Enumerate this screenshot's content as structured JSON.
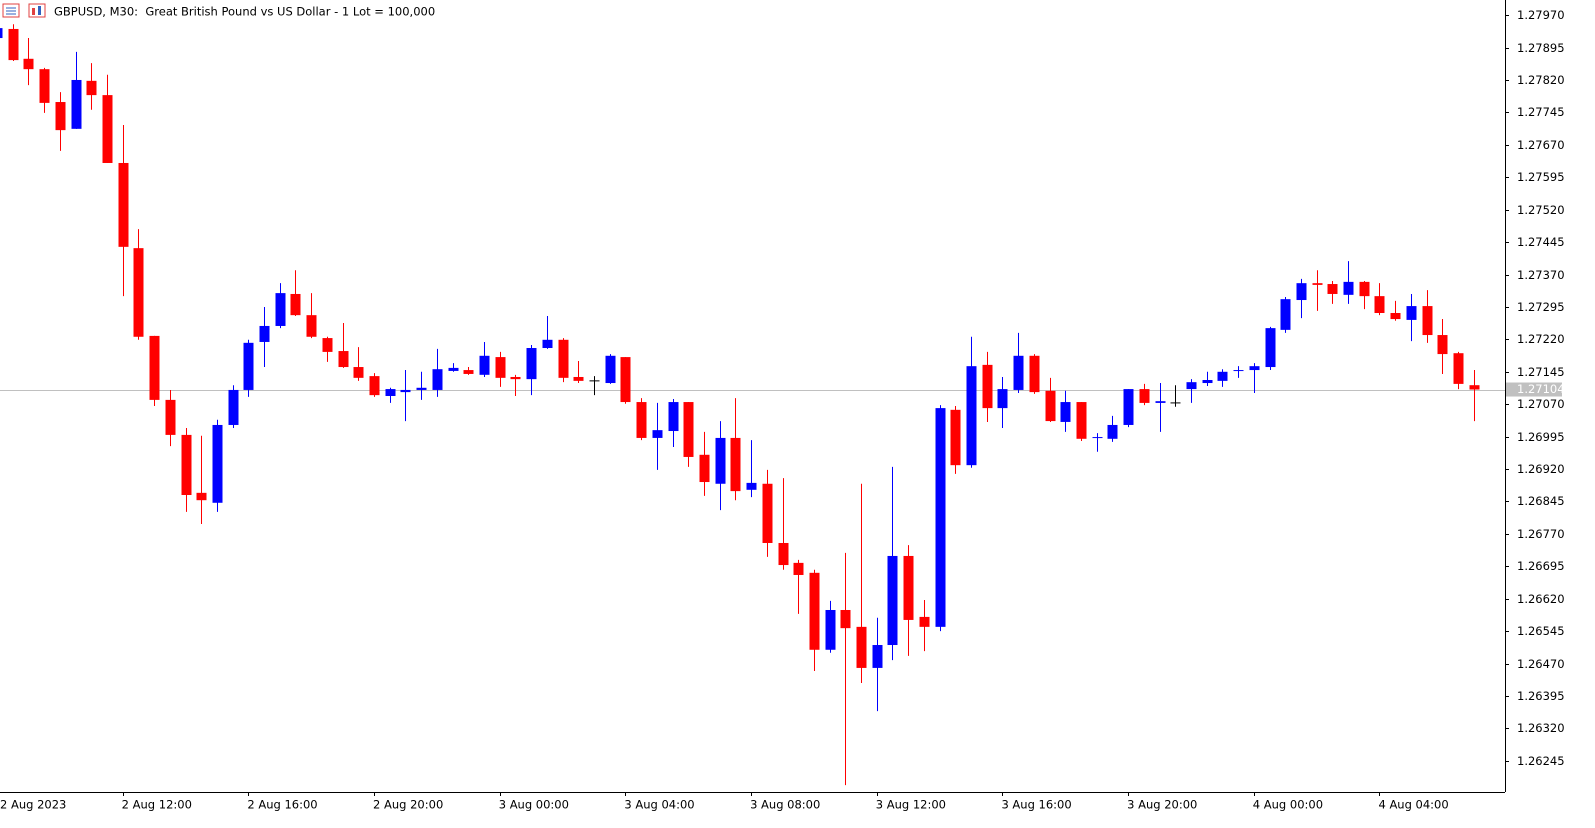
{
  "chart_data": {
    "type": "candlestick",
    "title": "GBPUSD, M30:  Great British Pound vs US Dollar - 1 Lot = 100,000",
    "categories": [
      "2 Aug 2023",
      null,
      null,
      null,
      null,
      null,
      null,
      null,
      "2 Aug 12:00",
      null,
      null,
      null,
      null,
      null,
      null,
      null,
      "2 Aug 16:00",
      null,
      null,
      null,
      null,
      null,
      null,
      null,
      "2 Aug 20:00",
      null,
      null,
      null,
      null,
      null,
      null,
      null,
      "3 Aug 00:00",
      null,
      null,
      null,
      null,
      null,
      null,
      null,
      "3 Aug 04:00",
      null,
      null,
      null,
      null,
      null,
      null,
      null,
      "3 Aug 08:00",
      null,
      null,
      null,
      null,
      null,
      null,
      null,
      "3 Aug 12:00",
      null,
      null,
      null,
      null,
      null,
      null,
      null,
      "3 Aug 16:00",
      null,
      null,
      null,
      null,
      null,
      null,
      null,
      "3 Aug 20:00",
      null,
      null,
      null,
      null,
      null,
      null,
      null,
      "4 Aug 00:00",
      null,
      null,
      null,
      null,
      null,
      null,
      null,
      "4 Aug 04:00",
      null,
      null,
      null,
      null,
      null,
      null
    ],
    "open": [
      1.27917,
      1.27938,
      1.27869,
      1.27845,
      1.27769,
      1.27707,
      1.27818,
      1.27785,
      1.27628,
      1.27431,
      1.27228,
      1.2708,
      1.26999,
      1.26865,
      1.26842,
      1.27022,
      1.27103,
      1.27214,
      1.27251,
      1.27325,
      1.27276,
      1.27223,
      1.27193,
      1.27156,
      1.27135,
      1.27089,
      1.27098,
      1.27103,
      1.27103,
      1.27147,
      1.27149,
      1.27138,
      1.27179,
      1.27133,
      1.27128,
      1.272,
      1.27219,
      1.27133,
      1.27124,
      1.27119,
      1.27179,
      1.27075,
      1.26992,
      1.27008,
      1.27075,
      1.26953,
      1.26886,
      1.26992,
      1.26872,
      1.26886,
      1.26749,
      1.26703,
      1.2668,
      1.26502,
      1.26594,
      1.26555,
      1.2646,
      1.26513,
      1.26719,
      1.26578,
      1.26555,
      1.27057,
      1.26929,
      1.27161,
      1.27061,
      1.27103,
      1.27182,
      1.27101,
      1.27029,
      1.27075,
      1.26992,
      1.2699,
      1.27022,
      1.27105,
      1.27073,
      1.27073,
      1.27105,
      1.27119,
      1.27124,
      1.27147,
      1.27149,
      1.27156,
      1.27242,
      1.27311,
      1.2735,
      1.27348,
      1.27323,
      1.27353,
      1.2732,
      1.27281,
      1.27265,
      1.27297,
      1.2723,
      1.27188,
      1.27114
    ],
    "high": [
      1.27949,
      1.27949,
      1.27917,
      1.27848,
      1.27792,
      1.27885,
      1.27859,
      1.27832,
      1.27716,
      1.27475,
      1.27228,
      1.27103,
      1.27015,
      1.26997,
      1.27034,
      1.27114,
      1.27219,
      1.27295,
      1.2735,
      1.2738,
      1.27327,
      1.27226,
      1.27258,
      1.27202,
      1.27142,
      1.27108,
      1.27149,
      1.27145,
      1.27198,
      1.27165,
      1.27156,
      1.27214,
      1.27191,
      1.27138,
      1.27207,
      1.27274,
      1.27223,
      1.2717,
      1.27135,
      1.27186,
      1.27179,
      1.27084,
      1.27073,
      1.27082,
      1.27075,
      1.27006,
      1.27031,
      1.27084,
      1.26987,
      1.26918,
      1.26899,
      1.2671,
      1.26687,
      1.26615,
      1.26726,
      1.26886,
      1.26576,
      1.26925,
      1.26744,
      1.26617,
      1.27068,
      1.27066,
      1.27226,
      1.27191,
      1.27133,
      1.27235,
      1.27186,
      1.27131,
      1.27101,
      1.27075,
      1.27003,
      1.27043,
      1.27105,
      1.27117,
      1.27119,
      1.27114,
      1.27128,
      1.27145,
      1.27151,
      1.27158,
      1.27165,
      1.27249,
      1.27318,
      1.2736,
      1.2738,
      1.27355,
      1.27401,
      1.27355,
      1.2735,
      1.27309,
      1.27325,
      1.27334,
      1.27267,
      1.27191,
      1.27149
    ],
    "low": [
      1.27912,
      1.27864,
      1.27808,
      1.27744,
      1.27656,
      1.27707,
      1.27751,
      1.27628,
      1.2732,
      1.27219,
      1.27066,
      1.26973,
      1.26821,
      1.26793,
      1.26821,
      1.27015,
      1.27087,
      1.27156,
      1.27246,
      1.27274,
      1.27223,
      1.27168,
      1.27154,
      1.27124,
      1.27087,
      1.27073,
      1.27031,
      1.2708,
      1.27087,
      1.27145,
      1.27138,
      1.27133,
      1.2711,
      1.27089,
      1.27091,
      1.27198,
      1.27121,
      1.27119,
      1.27091,
      1.27117,
      1.27071,
      1.26987,
      1.26918,
      1.26971,
      1.26925,
      1.26858,
      1.26825,
      1.26848,
      1.26855,
      1.26717,
      1.26687,
      1.26585,
      1.26453,
      1.26495,
      1.26189,
      1.26425,
      1.2636,
      1.26478,
      1.26488,
      1.26499,
      1.26545,
      1.26909,
      1.26923,
      1.27029,
      1.27015,
      1.27096,
      1.27094,
      1.27029,
      1.27006,
      1.26985,
      1.2696,
      1.26983,
      1.27017,
      1.27068,
      1.27006,
      1.27064,
      1.27073,
      1.27112,
      1.2711,
      1.27131,
      1.27096,
      1.27149,
      1.27235,
      1.27269,
      1.27286,
      1.27302,
      1.27302,
      1.2729,
      1.27276,
      1.27263,
      1.27216,
      1.27212,
      1.2714,
      1.27105,
      1.27031
    ],
    "close": [
      1.2794,
      1.27866,
      1.27845,
      1.27767,
      1.27704,
      1.2782,
      1.27785,
      1.27628,
      1.27434,
      1.27226,
      1.2708,
      1.26999,
      1.2686,
      1.26848,
      1.27022,
      1.27103,
      1.27212,
      1.27251,
      1.27327,
      1.27276,
      1.27226,
      1.27191,
      1.27156,
      1.27131,
      1.27091,
      1.27105,
      1.27103,
      1.27108,
      1.27151,
      1.27154,
      1.2714,
      1.27182,
      1.27131,
      1.27128,
      1.272,
      1.27219,
      1.27131,
      1.27124,
      1.27124,
      1.27182,
      1.27075,
      1.26992,
      1.2701,
      1.27075,
      1.26948,
      1.2689,
      1.26992,
      1.26869,
      1.26888,
      1.26749,
      1.26698,
      1.26675,
      1.26502,
      1.26594,
      1.26552,
      1.2646,
      1.26513,
      1.26719,
      1.26571,
      1.26555,
      1.27061,
      1.26929,
      1.27158,
      1.27061,
      1.27105,
      1.27182,
      1.27098,
      1.27031,
      1.27075,
      1.2699,
      1.26994,
      1.27022,
      1.27105,
      1.27073,
      1.27077,
      1.27073,
      1.27121,
      1.27126,
      1.27145,
      1.27149,
      1.27158,
      1.27246,
      1.27313,
      1.2735,
      1.27346,
      1.27325,
      1.27353,
      1.2732,
      1.27281,
      1.27267,
      1.27297,
      1.2723,
      1.27186,
      1.27117,
      1.27104
    ],
    "up_color": "#0000ff",
    "down_color": "#ff0000",
    "doji_color": "#000000",
    "last_price": 1.27104,
    "ylim": [
      1.26173,
      1.28005
    ],
    "yticks": [
      {
        "value": 1.2797,
        "label": "1.27970"
      },
      1.27895,
      {
        "value": 1.2782,
        "label": "1.27820"
      },
      1.27745,
      {
        "value": 1.2767,
        "label": "1.27670"
      },
      1.27595,
      {
        "value": 1.2752,
        "label": "1.27520"
      },
      1.27445,
      {
        "value": 1.2737,
        "label": "1.27370"
      },
      1.27295,
      {
        "value": 1.2722,
        "label": "1.27220"
      },
      1.27145,
      {
        "value": 1.2707,
        "label": "1.27070"
      },
      1.26995,
      {
        "value": 1.2692,
        "label": "1.26920"
      },
      1.26845,
      {
        "value": 1.2677,
        "label": "1.26770"
      },
      1.26695,
      {
        "value": 1.2662,
        "label": "1.26620"
      },
      1.26545,
      {
        "value": 1.2647,
        "label": "1.26470"
      },
      1.26395,
      {
        "value": 1.2632,
        "label": "1.26320"
      },
      1.26245
    ]
  }
}
